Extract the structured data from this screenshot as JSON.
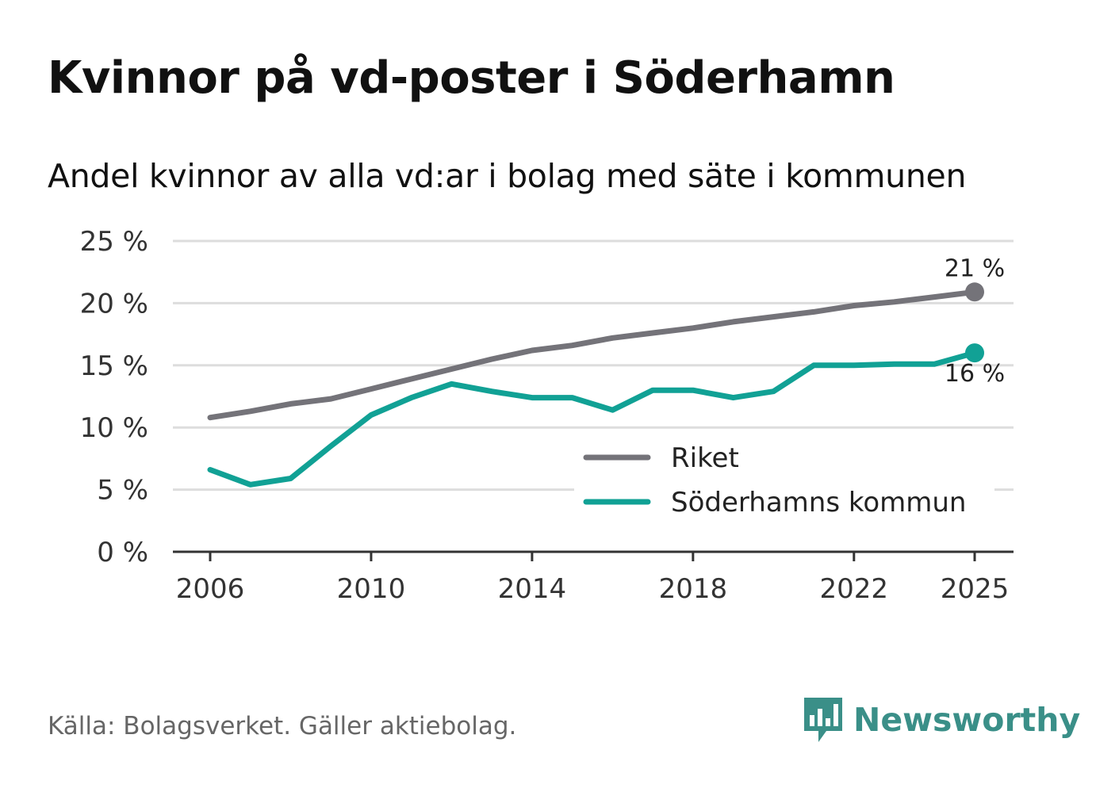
{
  "title": "Kvinnor på vd-poster i Söderhamn",
  "subtitle": "Andel kvinnor av alla vd:ar i bolag med säte i kommunen",
  "source": "Källa: Bolagsverket. Gäller aktiebolag.",
  "brand": "Newsworthy",
  "colors": {
    "riket": "#747379",
    "soderhamn": "#11a195",
    "grid": "#dddddd",
    "axis": "#333333",
    "brand": "#3a8f88"
  },
  "chart_data": {
    "type": "line",
    "title": "Kvinnor på vd-poster i Söderhamn",
    "subtitle": "Andel kvinnor av alla vd:ar i bolag med säte i kommunen",
    "xlabel": "",
    "ylabel": "",
    "x": [
      2006,
      2007,
      2008,
      2009,
      2010,
      2011,
      2012,
      2013,
      2014,
      2015,
      2016,
      2017,
      2018,
      2019,
      2020,
      2021,
      2022,
      2023,
      2024,
      2025
    ],
    "x_ticks": [
      2006,
      2010,
      2014,
      2018,
      2022,
      2025
    ],
    "x_tick_labels": [
      "2006",
      "2010",
      "2014",
      "2018",
      "2022",
      "2025"
    ],
    "ylim": [
      0,
      25
    ],
    "y_ticks": [
      0,
      5,
      10,
      15,
      20,
      25
    ],
    "y_tick_labels": [
      "0 %",
      "5 %",
      "10 %",
      "15 %",
      "20 %",
      "25 %"
    ],
    "grid": true,
    "legend_position": "bottom-right",
    "series": [
      {
        "name": "Riket",
        "color_key": "riket",
        "end_label": "21 %",
        "values": [
          10.8,
          11.3,
          11.9,
          12.3,
          13.1,
          13.9,
          14.7,
          15.5,
          16.2,
          16.6,
          17.2,
          17.6,
          18.0,
          18.5,
          18.9,
          19.3,
          19.8,
          20.1,
          20.5,
          20.9
        ]
      },
      {
        "name": "Söderhamns kommun",
        "color_key": "soderhamn",
        "end_label": "16 %",
        "values": [
          6.6,
          5.4,
          5.9,
          8.5,
          11.0,
          12.4,
          13.5,
          12.9,
          12.4,
          12.4,
          11.4,
          13.0,
          13.0,
          12.4,
          12.9,
          15.0,
          15.0,
          15.1,
          15.1,
          16.0
        ]
      }
    ]
  }
}
